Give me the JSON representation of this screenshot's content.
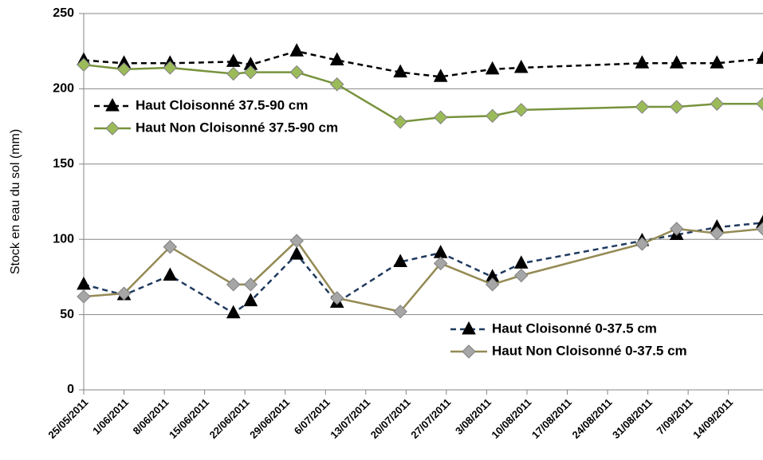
{
  "chart_data": {
    "type": "line",
    "y_label": "Stock en eau du sol (mm)",
    "x": [
      "25/05/2011",
      "1/06/2011",
      "9/06/2011",
      "20/06/2011",
      "23/06/2011",
      "1/07/2011",
      "8/07/2011",
      "19/07/2011",
      "26/07/2011",
      "4/08/2011",
      "9/08/2011",
      "30/08/2011",
      "5/09/2011",
      "12/09/2011",
      "20/09/2011"
    ],
    "xlim": [
      "25/05/2011",
      "20/09/2011"
    ],
    "xticks": [
      "25/05/2011",
      "1/06/2011",
      "8/06/2011",
      "15/06/2011",
      "22/06/2011",
      "29/06/2011",
      "6/07/2011",
      "13/07/2011",
      "20/07/2011",
      "27/07/2011",
      "3/08/2011",
      "10/08/2011",
      "17/08/2011",
      "24/08/2011",
      "31/08/2011",
      "7/09/2011",
      "14/09/2011"
    ],
    "ylim": [
      0,
      250
    ],
    "yticks": [
      0,
      50,
      100,
      150,
      200,
      250
    ],
    "grid": true,
    "series": [
      {
        "name": "Haut Cloisonné 37.5-90 cm",
        "color": "#000000",
        "dash": true,
        "marker": "triangle",
        "marker_color": "#000000",
        "legend": "upper-left",
        "values": [
          219,
          217,
          217,
          218,
          216,
          225,
          219,
          211,
          208,
          213,
          214,
          217,
          217,
          217,
          220
        ]
      },
      {
        "name": "Haut Non Cloisonné 37.5-90 cm",
        "color": "#77933c",
        "dash": false,
        "marker": "diamond",
        "marker_color": "#9bbb59",
        "legend": "upper-left",
        "values": [
          216,
          213,
          214,
          210,
          211,
          211,
          203,
          178,
          181,
          182,
          186,
          188,
          188,
          190,
          190
        ]
      },
      {
        "name": "Haut Cloisonné 0-37.5 cm",
        "color": "#1f3a5f",
        "dash": true,
        "marker": "triangle",
        "marker_color": "#000000",
        "legend": "lower-right",
        "values": [
          70,
          63,
          76,
          51,
          59,
          90,
          58,
          85,
          91,
          75,
          84,
          99,
          103,
          108,
          111
        ]
      },
      {
        "name": "Haut Non Cloisonné 0-37.5 cm",
        "color": "#948a54",
        "dash": false,
        "marker": "diamond",
        "marker_color": "#a6a6a6",
        "legend": "lower-right",
        "values": [
          62,
          64,
          95,
          70,
          70,
          99,
          61,
          52,
          84,
          70,
          76,
          97,
          107,
          104,
          107
        ]
      }
    ]
  }
}
